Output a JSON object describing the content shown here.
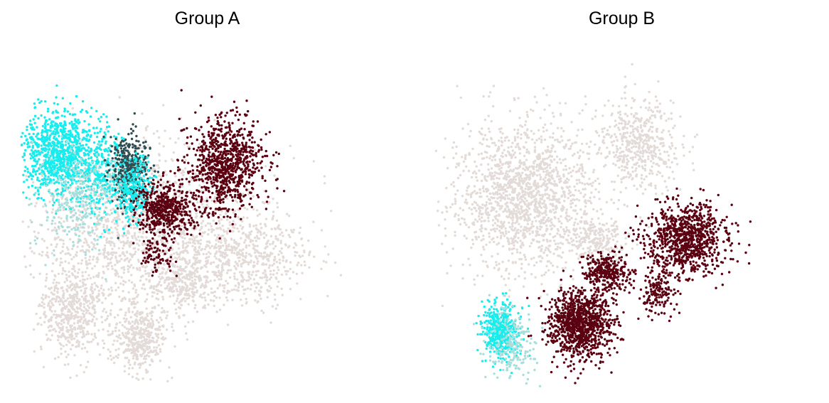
{
  "chart_data": [
    {
      "type": "scatter",
      "title": "Group A",
      "xlabel": "",
      "ylabel": "",
      "grid": false,
      "axes_visible": false,
      "colors": {
        "background_cells": "#e3dbd7",
        "cyan_cells": "#18ecec",
        "pale_cyan_cells": "#a8dfdc",
        "dark_red_cells": "#5a0010",
        "dark_teal_cells": "#2e4d52"
      },
      "clusters": [
        {
          "color": "background_cells",
          "cx": 0.33,
          "cy": 0.56,
          "sx": 0.26,
          "sy": 0.22,
          "n": 1500
        },
        {
          "color": "background_cells",
          "cx": 0.14,
          "cy": 0.78,
          "sx": 0.08,
          "sy": 0.12,
          "n": 500
        },
        {
          "color": "background_cells",
          "cx": 0.33,
          "cy": 0.86,
          "sx": 0.07,
          "sy": 0.09,
          "n": 400
        },
        {
          "color": "background_cells",
          "cx": 0.62,
          "cy": 0.62,
          "sx": 0.17,
          "sy": 0.12,
          "n": 600
        },
        {
          "color": "background_cells",
          "cx": 0.46,
          "cy": 0.7,
          "sx": 0.07,
          "sy": 0.06,
          "n": 200
        },
        {
          "color": "cyan_cells",
          "cx": 0.1,
          "cy": 0.33,
          "sx": 0.09,
          "sy": 0.11,
          "n": 900
        },
        {
          "color": "cyan_cells",
          "cx": 0.22,
          "cy": 0.38,
          "sx": 0.06,
          "sy": 0.12,
          "n": 300
        },
        {
          "color": "pale_cyan_cells",
          "cx": 0.16,
          "cy": 0.45,
          "sx": 0.12,
          "sy": 0.13,
          "n": 300
        },
        {
          "color": "dark_teal_cells",
          "cx": 0.3,
          "cy": 0.38,
          "sx": 0.05,
          "sy": 0.09,
          "n": 400
        },
        {
          "color": "cyan_cells",
          "cx": 0.31,
          "cy": 0.43,
          "sx": 0.045,
          "sy": 0.08,
          "n": 250
        },
        {
          "color": "dark_red_cells",
          "cx": 0.57,
          "cy": 0.36,
          "sx": 0.09,
          "sy": 0.12,
          "n": 900
        },
        {
          "color": "dark_red_cells",
          "cx": 0.4,
          "cy": 0.49,
          "sx": 0.07,
          "sy": 0.07,
          "n": 500
        },
        {
          "color": "dark_red_cells",
          "cx": 0.38,
          "cy": 0.62,
          "sx": 0.04,
          "sy": 0.05,
          "n": 80
        }
      ]
    },
    {
      "type": "scatter",
      "title": "Group B",
      "xlabel": "",
      "ylabel": "",
      "grid": false,
      "axes_visible": false,
      "colors": {
        "background_cells": "#e3dbd7",
        "cyan_cells": "#18ecec",
        "pale_cyan_cells": "#a8dfdc",
        "dark_red_cells": "#5a0010",
        "dark_teal_cells": "#2e4d52"
      },
      "clusters": [
        {
          "color": "background_cells",
          "cx": 0.25,
          "cy": 0.45,
          "sx": 0.19,
          "sy": 0.2,
          "n": 1600
        },
        {
          "color": "background_cells",
          "cx": 0.57,
          "cy": 0.3,
          "sx": 0.1,
          "sy": 0.12,
          "n": 500
        },
        {
          "color": "background_cells",
          "cx": 0.45,
          "cy": 0.58,
          "sx": 0.07,
          "sy": 0.06,
          "n": 200
        },
        {
          "color": "cyan_cells",
          "cx": 0.18,
          "cy": 0.84,
          "sx": 0.045,
          "sy": 0.07,
          "n": 450
        },
        {
          "color": "pale_cyan_cells",
          "cx": 0.21,
          "cy": 0.87,
          "sx": 0.06,
          "sy": 0.09,
          "n": 200
        },
        {
          "color": "dark_red_cells",
          "cx": 0.4,
          "cy": 0.82,
          "sx": 0.08,
          "sy": 0.09,
          "n": 1000
        },
        {
          "color": "dark_red_cells",
          "cx": 0.48,
          "cy": 0.67,
          "sx": 0.06,
          "sy": 0.05,
          "n": 300
        },
        {
          "color": "dark_red_cells",
          "cx": 0.7,
          "cy": 0.57,
          "sx": 0.1,
          "sy": 0.09,
          "n": 900
        },
        {
          "color": "dark_red_cells",
          "cx": 0.62,
          "cy": 0.73,
          "sx": 0.05,
          "sy": 0.06,
          "n": 150
        }
      ]
    }
  ]
}
